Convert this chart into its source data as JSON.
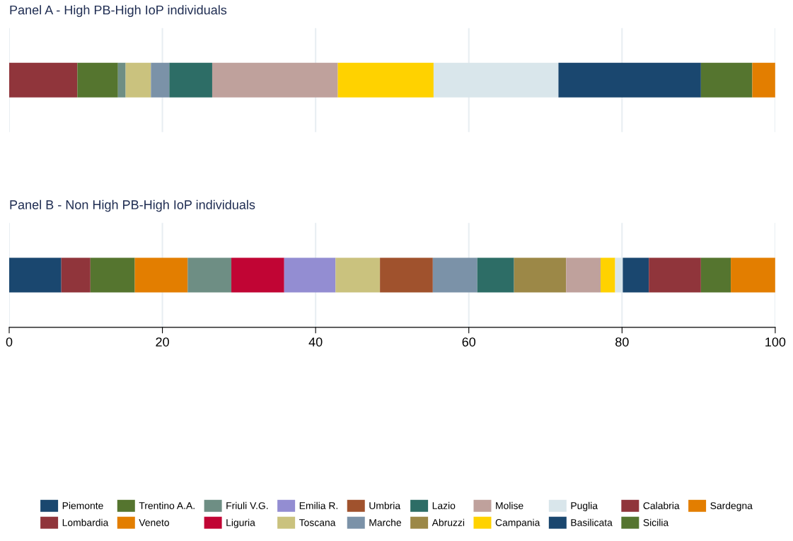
{
  "chart_data": [
    {
      "type": "bar",
      "orientation": "horizontal",
      "stacked": true,
      "title": "Panel A - High PB-High IoP individuals",
      "categories": [
        null
      ],
      "xlim": [
        0,
        100
      ],
      "xticks": [
        0,
        20,
        40,
        60,
        80,
        100
      ],
      "grid": "x",
      "tick_labels": false,
      "series": [
        {
          "color": "#1a476f",
          "values": [
            0
          ]
        },
        {
          "color": "#90353b",
          "values": [
            8.9
          ]
        },
        {
          "color": "#55752f",
          "values": [
            5.3
          ]
        },
        {
          "color": "#e37e00",
          "values": [
            0
          ]
        },
        {
          "color": "#6e8e84",
          "values": [
            1.0
          ]
        },
        {
          "color": "#c10534",
          "values": [
            0
          ]
        },
        {
          "color": "#938dd2",
          "values": [
            0
          ]
        },
        {
          "color": "#cac27e",
          "values": [
            3.3
          ]
        },
        {
          "color": "#a0522d",
          "values": [
            0
          ]
        },
        {
          "color": "#7b92a8",
          "values": [
            2.4
          ]
        },
        {
          "color": "#2d6d66",
          "values": [
            5.6
          ]
        },
        {
          "color": "#9c8847",
          "values": [
            0
          ]
        },
        {
          "color": "#bfa19c",
          "values": [
            16.4
          ]
        },
        {
          "color": "#ffd200",
          "values": [
            12.5
          ]
        },
        {
          "color": "#d9e6eb",
          "values": [
            16.3
          ]
        },
        {
          "color": "#1a476f",
          "values": [
            18.6
          ]
        },
        {
          "color": "#90353b",
          "values": [
            0
          ]
        },
        {
          "color": "#55752f",
          "values": [
            6.7
          ]
        },
        {
          "color": "#e37e00",
          "values": [
            3.0
          ]
        }
      ]
    },
    {
      "type": "bar",
      "orientation": "horizontal",
      "stacked": true,
      "title": "Panel B - Non High PB-High IoP individuals",
      "categories": [
        null
      ],
      "xlim": [
        0,
        100
      ],
      "xticks": [
        0,
        20,
        40,
        60,
        80,
        100
      ],
      "grid": "x",
      "tick_labels": "x",
      "legend": "bottom",
      "series": [
        {
          "name": "Piemonte",
          "color": "#1a476f",
          "values": [
            6.8
          ]
        },
        {
          "name": "Lombardia",
          "color": "#90353b",
          "values": [
            3.8
          ]
        },
        {
          "name": "Trentino A.A.",
          "color": "#55752f",
          "values": [
            5.8
          ]
        },
        {
          "name": "Veneto",
          "color": "#e37e00",
          "values": [
            6.9
          ]
        },
        {
          "name": "Friuli V.G.",
          "color": "#6e8e84",
          "values": [
            5.7
          ]
        },
        {
          "name": "Liguria",
          "color": "#c10534",
          "values": [
            6.9
          ]
        },
        {
          "name": "Emilia R.",
          "color": "#938dd2",
          "values": [
            6.7
          ]
        },
        {
          "name": "Toscana",
          "color": "#cac27e",
          "values": [
            5.8
          ]
        },
        {
          "name": "Umbria",
          "color": "#a0522d",
          "values": [
            6.9
          ]
        },
        {
          "name": "Marche",
          "color": "#7b92a8",
          "values": [
            5.8
          ]
        },
        {
          "name": "Lazio",
          "color": "#2d6d66",
          "values": [
            4.8
          ]
        },
        {
          "name": "Abruzzi",
          "color": "#9c8847",
          "values": [
            6.8
          ]
        },
        {
          "name": "Molise",
          "color": "#bfa19c",
          "values": [
            4.5
          ]
        },
        {
          "name": "Campania",
          "color": "#ffd200",
          "values": [
            1.9
          ]
        },
        {
          "name": "Puglia",
          "color": "#d9e6eb",
          "values": [
            1.0
          ]
        },
        {
          "name": "Basilicata",
          "color": "#1a476f",
          "values": [
            3.4
          ]
        },
        {
          "name": "Calabria",
          "color": "#90353b",
          "values": [
            6.8
          ]
        },
        {
          "name": "Sicilia",
          "color": "#55752f",
          "values": [
            3.9
          ]
        },
        {
          "name": "Sardegna",
          "color": "#e37e00",
          "values": [
            5.8
          ]
        }
      ]
    }
  ]
}
